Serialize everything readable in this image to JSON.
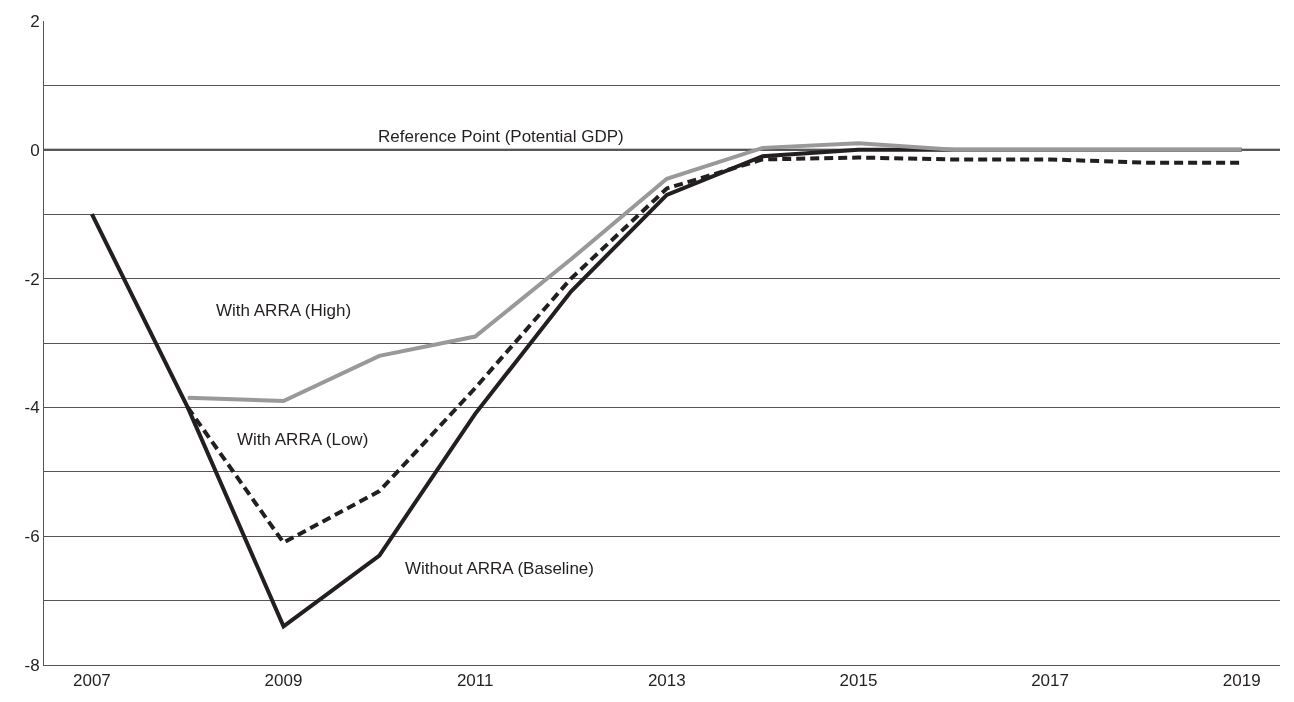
{
  "chart_data": {
    "type": "line",
    "x": [
      2007,
      2008,
      2009,
      2010,
      2011,
      2012,
      2013,
      2014,
      2015,
      2016,
      2017,
      2018,
      2019
    ],
    "series": [
      {
        "name": "Without ARRA (Baseline)",
        "color": "#231f20",
        "line_style": "solid",
        "values": [
          -1.0,
          -4.0,
          -7.4,
          -6.3,
          -4.1,
          -2.2,
          -0.7,
          -0.1,
          0,
          0,
          0,
          0,
          0
        ]
      },
      {
        "name": "With ARRA (High)",
        "color": "#999999",
        "line_style": "solid",
        "values": [
          null,
          -3.85,
          -3.9,
          -3.2,
          -2.9,
          -1.7,
          -0.45,
          0.03,
          0.1,
          0,
          0,
          0,
          0
        ]
      },
      {
        "name": "With ARRA (Low)",
        "color": "#231f20",
        "line_style": "dashed",
        "values": [
          null,
          -4.0,
          -6.1,
          -5.3,
          -3.7,
          -2.0,
          -0.6,
          -0.15,
          -0.12,
          -0.15,
          -0.15,
          -0.2,
          -0.2
        ]
      }
    ],
    "xlim": [
      2006.5,
      2019.4
    ],
    "xticks": [
      2007,
      2009,
      2011,
      2013,
      2015,
      2017,
      2019
    ],
    "ylim": [
      -8,
      2
    ],
    "yticks": [
      -8,
      {
        "value": -7,
        "label": null
      },
      -6,
      {
        "value": -5,
        "label": null
      },
      -4,
      {
        "value": -3,
        "label": null
      },
      -2,
      {
        "value": -1,
        "label": null
      },
      0,
      {
        "value": 1,
        "label": null
      },
      2
    ],
    "ref_lines": [
      {
        "axis": "y",
        "value": 0,
        "label": "Reference Point (Potential GDP)",
        "color": "#231f20",
        "line_style": "solid"
      }
    ],
    "grid": "y",
    "legend": false,
    "marker": "none"
  }
}
